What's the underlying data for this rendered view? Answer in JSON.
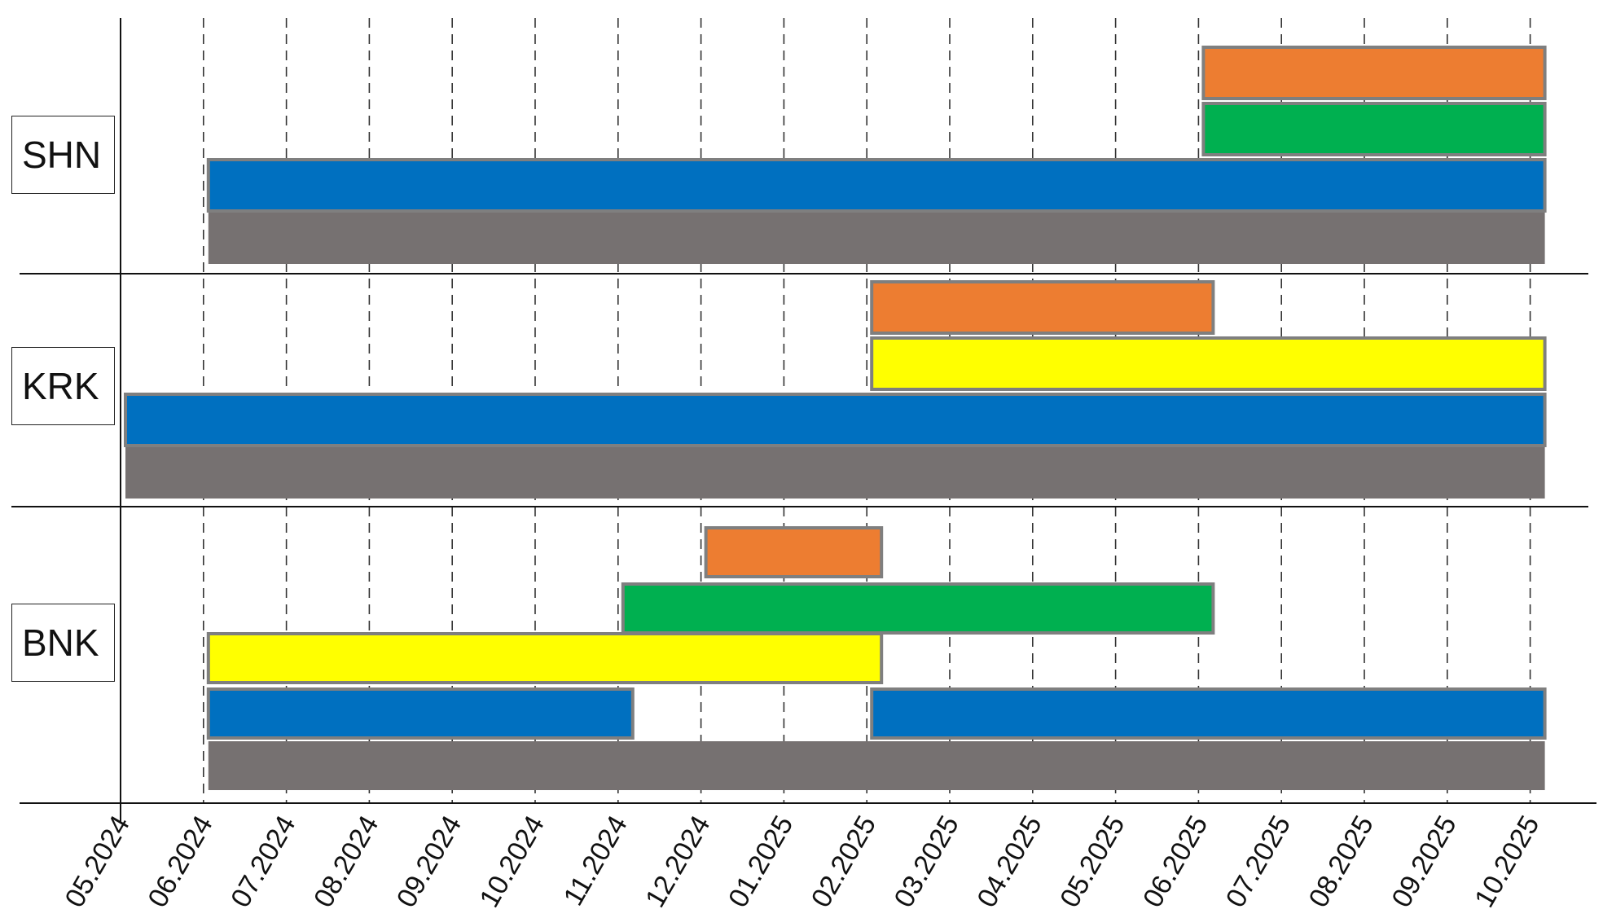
{
  "chart_data": {
    "type": "gantt",
    "x_unit": "month",
    "x_range": [
      "2024-05",
      "2025-10"
    ],
    "x_tick_labels": [
      "05.2024",
      "06.2024",
      "07.2024",
      "08.2024",
      "09.2024",
      "10.2024",
      "11.2024",
      "12.2024",
      "01.2025",
      "02.2025",
      "03.2025",
      "04.2025",
      "05.2025",
      "06.2025",
      "07.2025",
      "08.2025",
      "09.2025",
      "10.2025"
    ],
    "grid": "vertical dashed at each month",
    "colors": {
      "orange": "#ED7D31",
      "green": "#00B050",
      "yellow": "#FFFF00",
      "blue": "#0070C0",
      "gray": "#767171",
      "bar_border": "#7F7F7F"
    },
    "rows": [
      {
        "label": "SHN",
        "bars": [
          {
            "color": "orange",
            "start": "2025-06",
            "end": "2025-10",
            "lane": 0
          },
          {
            "color": "green",
            "start": "2025-06",
            "end": "2025-10",
            "lane": 1
          },
          {
            "color": "blue",
            "start": "2024-06",
            "end": "2025-10",
            "lane": 2
          },
          {
            "color": "gray",
            "start": "2024-06",
            "end": "2025-10",
            "lane": 3
          }
        ]
      },
      {
        "label": "KRK",
        "bars": [
          {
            "color": "orange",
            "start": "2025-02",
            "end": "2025-06",
            "lane": 0
          },
          {
            "color": "yellow",
            "start": "2025-02",
            "end": "2025-10",
            "lane": 1
          },
          {
            "color": "blue",
            "start": "2024-05",
            "end": "2025-10",
            "lane": 2
          },
          {
            "color": "gray",
            "start": "2024-05",
            "end": "2025-10",
            "lane": 3
          }
        ]
      },
      {
        "label": "BNK",
        "bars": [
          {
            "color": "orange",
            "start": "2024-12",
            "end": "2025-02",
            "lane": 0
          },
          {
            "color": "green",
            "start": "2024-11",
            "end": "2025-06",
            "lane": 1
          },
          {
            "color": "yellow",
            "start": "2024-06",
            "end": "2025-02",
            "lane": 2
          },
          {
            "color": "blue",
            "start": "2024-06",
            "end": "2024-11",
            "lane": 3
          },
          {
            "color": "blue",
            "start": "2025-02",
            "end": "2025-10",
            "lane": 3
          },
          {
            "color": "gray",
            "start": "2024-06",
            "end": "2025-10",
            "lane": 4
          }
        ]
      }
    ]
  }
}
